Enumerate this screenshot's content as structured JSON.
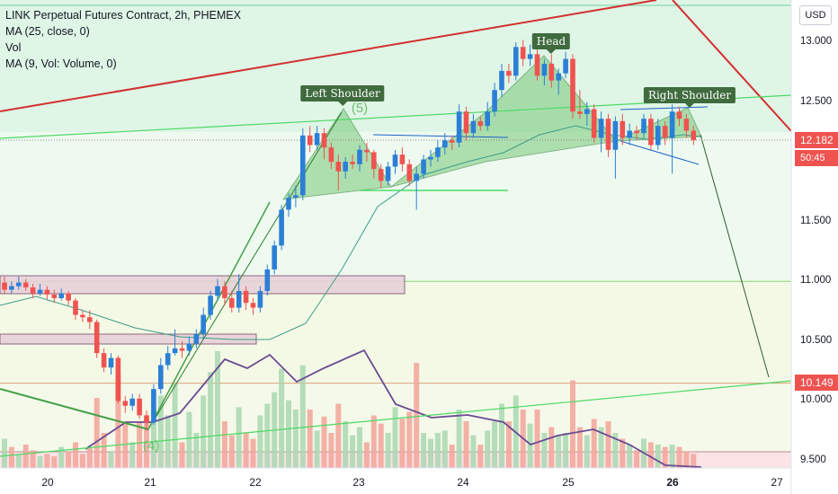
{
  "legend": {
    "title": "LINK Perpetual Futures Contract, 2h, PHEMEX",
    "ma": "MA (25, close, 0)",
    "vol": "Vol",
    "vol_ma": "MA (9, Vol: Volume, 0)"
  },
  "currency": "USD",
  "colors": {
    "up": "#2b7fd6",
    "down": "#ef5350",
    "trend_red": "#d32f2f",
    "green_line": "#4cd964",
    "zone_fill": "#e6cfd8",
    "tag_red": "#ef5350",
    "tag_target": "#ef5350",
    "ma_line": "#3b9e8a",
    "vol_ma_line": "#6a4c93"
  },
  "price_tags": {
    "last": "12.182",
    "countdown": "50:45",
    "target": "10.149"
  },
  "annotations": {
    "left_shoulder": "Left Shoulder",
    "head": "Head",
    "right_shoulder": "Right Shoulder",
    "wave5": "(5)",
    "wave4": "(4)"
  },
  "chart_data": {
    "type": "candlestick",
    "title": "LINK Perpetual Futures Contract, 2h, PHEMEX",
    "ylim": [
      9.45,
      13.3
    ],
    "yticks": [
      9.5,
      10.0,
      10.5,
      11.0,
      11.5,
      12.0,
      12.5,
      13.0
    ],
    "ytick_labels": [
      "9.500",
      "10.000",
      "10.500",
      "11.000",
      "11.500",
      "12.000",
      "12.500",
      "13.000"
    ],
    "xticks": [
      {
        "label": "20",
        "bold": false
      },
      {
        "label": "21",
        "bold": false
      },
      {
        "label": "22",
        "bold": false
      },
      {
        "label": "23",
        "bold": false
      },
      {
        "label": "24",
        "bold": false
      },
      {
        "label": "25",
        "bold": false
      },
      {
        "label": "26",
        "bold": true
      },
      {
        "label": "27",
        "bold": false
      }
    ],
    "candles": [
      [
        10.99,
        10.93,
        11.04,
        10.9
      ],
      [
        10.93,
        10.96,
        11.0,
        10.9
      ],
      [
        10.96,
        10.99,
        11.04,
        10.93
      ],
      [
        10.99,
        10.95,
        11.02,
        10.92
      ],
      [
        10.95,
        10.9,
        10.98,
        10.86
      ],
      [
        10.9,
        10.93,
        10.98,
        10.88
      ],
      [
        10.93,
        10.89,
        10.96,
        10.85
      ],
      [
        10.89,
        10.86,
        10.93,
        10.82
      ],
      [
        10.86,
        10.9,
        10.94,
        10.84
      ],
      [
        10.9,
        10.84,
        10.92,
        10.8
      ],
      [
        10.84,
        10.72,
        10.86,
        10.68
      ],
      [
        10.72,
        10.7,
        10.76,
        10.66
      ],
      [
        10.7,
        10.66,
        10.76,
        10.6
      ],
      [
        10.66,
        10.4,
        10.68,
        10.36
      ],
      [
        10.4,
        10.28,
        10.44,
        10.24
      ],
      [
        10.28,
        10.36,
        10.4,
        10.22
      ],
      [
        10.36,
        10.0,
        10.38,
        9.98
      ],
      [
        10.0,
        9.96,
        10.04,
        9.9
      ],
      [
        9.96,
        10.02,
        10.06,
        9.92
      ],
      [
        10.02,
        9.88,
        10.06,
        9.85
      ],
      [
        9.88,
        9.82,
        9.92,
        9.75
      ],
      [
        9.82,
        10.1,
        10.14,
        9.8
      ],
      [
        10.1,
        10.3,
        10.36,
        10.06
      ],
      [
        10.3,
        10.4,
        10.46,
        10.26
      ],
      [
        10.4,
        10.44,
        10.6,
        10.38
      ],
      [
        10.44,
        10.42,
        10.5,
        10.36
      ],
      [
        10.42,
        10.48,
        10.54,
        10.38
      ],
      [
        10.48,
        10.56,
        10.6,
        10.44
      ],
      [
        10.56,
        10.72,
        10.78,
        10.52
      ],
      [
        10.72,
        10.88,
        10.92,
        10.68
      ],
      [
        10.88,
        10.96,
        11.02,
        10.84
      ],
      [
        10.96,
        10.86,
        11.0,
        10.8
      ],
      [
        10.86,
        10.78,
        10.92,
        10.74
      ],
      [
        10.78,
        10.92,
        11.06,
        10.74
      ],
      [
        10.92,
        10.82,
        10.96,
        10.76
      ],
      [
        10.82,
        10.78,
        10.86,
        10.72
      ],
      [
        10.78,
        10.92,
        10.96,
        10.74
      ],
      [
        10.92,
        11.1,
        11.14,
        10.88
      ],
      [
        11.1,
        11.3,
        11.34,
        11.06
      ],
      [
        11.3,
        11.6,
        11.64,
        11.26
      ],
      [
        11.6,
        11.7,
        11.74,
        11.54
      ],
      [
        11.7,
        11.72,
        11.8,
        11.62
      ],
      [
        11.72,
        12.22,
        12.28,
        11.68
      ],
      [
        12.22,
        12.14,
        12.3,
        12.08
      ],
      [
        12.14,
        12.24,
        12.3,
        12.1
      ],
      [
        12.24,
        12.12,
        12.28,
        12.02
      ],
      [
        12.12,
        12.0,
        12.16,
        11.94
      ],
      [
        12.0,
        11.92,
        12.06,
        11.76
      ],
      [
        11.92,
        12.0,
        12.04,
        11.86
      ],
      [
        12.0,
        11.98,
        12.06,
        11.94
      ],
      [
        11.98,
        12.1,
        12.14,
        11.92
      ],
      [
        12.1,
        12.08,
        12.16,
        12.0
      ],
      [
        12.08,
        11.94,
        12.1,
        11.86
      ],
      [
        11.94,
        11.84,
        11.98,
        11.78
      ],
      [
        11.84,
        11.96,
        12.0,
        11.8
      ],
      [
        11.96,
        12.06,
        12.1,
        11.9
      ],
      [
        12.06,
        11.98,
        12.12,
        11.92
      ],
      [
        11.98,
        11.84,
        12.02,
        11.8
      ],
      [
        11.84,
        11.9,
        11.96,
        11.6
      ],
      [
        11.9,
        12.02,
        12.06,
        11.86
      ],
      [
        12.02,
        12.04,
        12.1,
        11.96
      ],
      [
        12.04,
        12.12,
        12.18,
        12.0
      ],
      [
        12.12,
        12.18,
        12.24,
        12.06
      ],
      [
        12.18,
        12.16,
        12.22,
        12.1
      ],
      [
        12.16,
        12.42,
        12.48,
        12.12
      ],
      [
        12.42,
        12.24,
        12.46,
        12.18
      ],
      [
        12.24,
        12.34,
        12.4,
        12.2
      ],
      [
        12.34,
        12.3,
        12.38,
        12.26
      ],
      [
        12.3,
        12.42,
        12.5,
        12.26
      ],
      [
        12.42,
        12.6,
        12.66,
        12.38
      ],
      [
        12.6,
        12.76,
        12.82,
        12.54
      ],
      [
        12.76,
        12.72,
        12.82,
        12.66
      ],
      [
        12.72,
        12.96,
        13.0,
        12.68
      ],
      [
        12.96,
        12.86,
        13.02,
        12.8
      ],
      [
        12.86,
        12.9,
        12.98,
        12.8
      ],
      [
        12.9,
        12.72,
        12.94,
        12.68
      ],
      [
        12.72,
        12.82,
        12.86,
        12.64
      ],
      [
        12.82,
        12.68,
        12.9,
        12.62
      ],
      [
        12.68,
        12.74,
        12.78,
        12.56
      ],
      [
        12.74,
        12.86,
        12.92,
        12.7
      ],
      [
        12.86,
        12.42,
        12.9,
        12.36
      ],
      [
        12.42,
        12.4,
        12.6,
        12.36
      ],
      [
        12.4,
        12.44,
        12.5,
        12.3
      ],
      [
        12.44,
        12.2,
        12.48,
        12.16
      ],
      [
        12.2,
        12.36,
        12.42,
        12.08
      ],
      [
        12.36,
        12.1,
        12.4,
        12.04
      ],
      [
        12.1,
        12.34,
        12.38,
        11.86
      ],
      [
        12.34,
        12.2,
        12.4,
        12.14
      ],
      [
        12.2,
        12.26,
        12.32,
        12.14
      ],
      [
        12.26,
        12.24,
        12.3,
        12.18
      ],
      [
        12.24,
        12.36,
        12.4,
        12.2
      ],
      [
        12.36,
        12.14,
        12.4,
        12.1
      ],
      [
        12.14,
        12.3,
        12.36,
        12.1
      ],
      [
        12.3,
        12.2,
        12.34,
        12.14
      ],
      [
        12.2,
        12.42,
        12.48,
        11.9
      ],
      [
        12.42,
        12.36,
        12.46,
        12.3
      ],
      [
        12.36,
        12.26,
        12.4,
        12.2
      ],
      [
        12.26,
        12.18,
        12.3,
        12.14
      ]
    ],
    "volume": [
      [
        0.25,
        0
      ],
      [
        0.18,
        1
      ],
      [
        0.12,
        0
      ],
      [
        0.2,
        1
      ],
      [
        0.15,
        1
      ],
      [
        0.1,
        0
      ],
      [
        0.12,
        1
      ],
      [
        0.1,
        1
      ],
      [
        0.18,
        0
      ],
      [
        0.14,
        1
      ],
      [
        0.22,
        1
      ],
      [
        0.12,
        1
      ],
      [
        0.18,
        1
      ],
      [
        0.6,
        1
      ],
      [
        0.3,
        1
      ],
      [
        0.14,
        0
      ],
      [
        0.8,
        1
      ],
      [
        0.4,
        1
      ],
      [
        0.22,
        0
      ],
      [
        0.4,
        1
      ],
      [
        0.42,
        1
      ],
      [
        0.5,
        0
      ],
      [
        0.62,
        0
      ],
      [
        0.45,
        0
      ],
      [
        0.72,
        0
      ],
      [
        0.22,
        1
      ],
      [
        0.48,
        0
      ],
      [
        0.3,
        0
      ],
      [
        0.62,
        0
      ],
      [
        0.82,
        0
      ],
      [
        1.0,
        0
      ],
      [
        0.4,
        1
      ],
      [
        0.28,
        1
      ],
      [
        0.52,
        0
      ],
      [
        0.3,
        1
      ],
      [
        0.25,
        1
      ],
      [
        0.45,
        0
      ],
      [
        0.55,
        0
      ],
      [
        0.65,
        0
      ],
      [
        0.85,
        0
      ],
      [
        0.58,
        0
      ],
      [
        0.5,
        0
      ],
      [
        0.88,
        0
      ],
      [
        0.5,
        1
      ],
      [
        0.32,
        0
      ],
      [
        0.44,
        1
      ],
      [
        0.3,
        1
      ],
      [
        0.55,
        1
      ],
      [
        0.4,
        0
      ],
      [
        0.28,
        0
      ],
      [
        0.35,
        0
      ],
      [
        0.22,
        1
      ],
      [
        0.45,
        1
      ],
      [
        0.38,
        1
      ],
      [
        0.3,
        0
      ],
      [
        0.52,
        0
      ],
      [
        0.42,
        1
      ],
      [
        0.48,
        1
      ],
      [
        0.9,
        1
      ],
      [
        0.3,
        0
      ],
      [
        0.25,
        0
      ],
      [
        0.3,
        0
      ],
      [
        0.32,
        0
      ],
      [
        0.2,
        1
      ],
      [
        0.5,
        0
      ],
      [
        0.4,
        1
      ],
      [
        0.28,
        0
      ],
      [
        0.2,
        1
      ],
      [
        0.32,
        0
      ],
      [
        0.4,
        0
      ],
      [
        0.55,
        0
      ],
      [
        0.4,
        1
      ],
      [
        0.62,
        0
      ],
      [
        0.5,
        1
      ],
      [
        0.38,
        0
      ],
      [
        0.5,
        1
      ],
      [
        0.3,
        0
      ],
      [
        0.35,
        1
      ],
      [
        0.28,
        0
      ],
      [
        0.3,
        0
      ],
      [
        0.75,
        1
      ],
      [
        0.35,
        1
      ],
      [
        0.28,
        0
      ],
      [
        0.42,
        1
      ],
      [
        0.35,
        0
      ],
      [
        0.4,
        1
      ],
      [
        0.3,
        0
      ],
      [
        0.25,
        1
      ],
      [
        0.2,
        0
      ],
      [
        0.15,
        1
      ],
      [
        0.25,
        0
      ],
      [
        0.22,
        1
      ],
      [
        0.2,
        0
      ],
      [
        0.18,
        1
      ],
      [
        0.2,
        0
      ],
      [
        0.18,
        1
      ],
      [
        0.14,
        1
      ],
      [
        0.12,
        1
      ]
    ]
  }
}
